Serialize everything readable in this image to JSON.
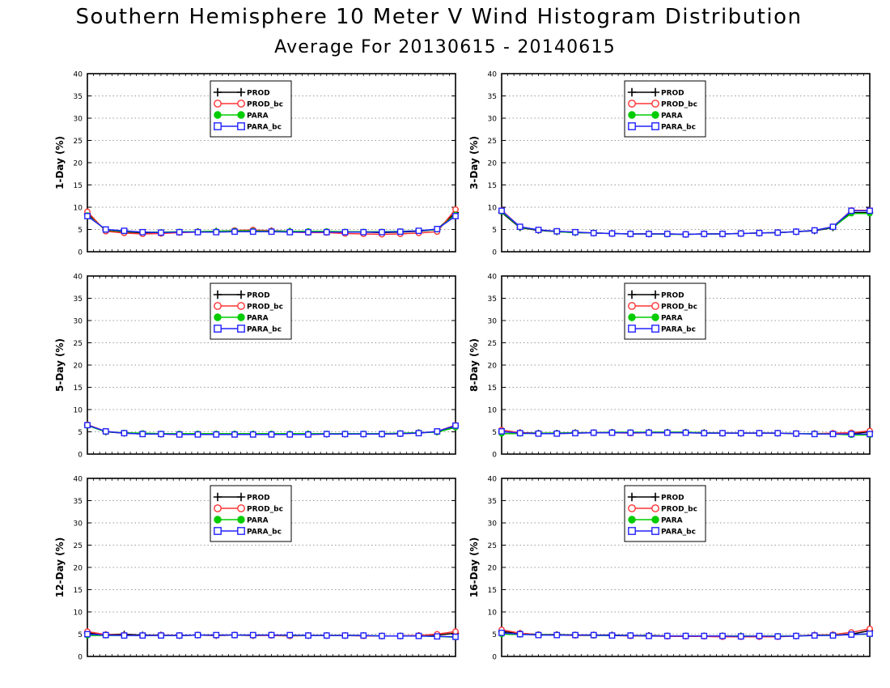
{
  "title": "Southern Hemisphere 10 Meter V Wind Histogram Distribution",
  "subtitle": "Average For 20130615 - 20140615",
  "series_styles": [
    {
      "name": "PROD",
      "color": "#000000",
      "marker": "plus"
    },
    {
      "name": "PROD_bc",
      "color": "#ff3333",
      "marker": "open-circle"
    },
    {
      "name": "PARA",
      "color": "#00cc00",
      "marker": "filled-circle"
    },
    {
      "name": "PARA_bc",
      "color": "#2222ff",
      "marker": "open-square"
    }
  ],
  "chart_data": [
    {
      "type": "line",
      "ylabel": "1-Day (%)",
      "ylim": [
        0,
        40
      ],
      "yticks": [
        0,
        5,
        10,
        15,
        20,
        25,
        30,
        35,
        40
      ],
      "x": [
        1,
        2,
        3,
        4,
        5,
        6,
        7,
        8,
        9,
        10,
        11,
        12,
        13,
        14,
        15,
        16,
        17,
        18,
        19,
        20,
        21
      ],
      "grid": "horizontal-dotted",
      "legend_placement": "top-center",
      "series": [
        {
          "name": "PROD",
          "values": [
            8.5,
            4.8,
            4.5,
            4.2,
            4.3,
            4.4,
            4.5,
            4.6,
            4.7,
            4.8,
            4.7,
            4.6,
            4.5,
            4.5,
            4.4,
            4.4,
            4.3,
            4.4,
            4.6,
            5.0,
            8.8
          ]
        },
        {
          "name": "PROD_bc",
          "values": [
            9.0,
            4.6,
            4.2,
            4.0,
            4.1,
            4.3,
            4.4,
            4.5,
            4.8,
            4.9,
            4.7,
            4.4,
            4.3,
            4.3,
            4.1,
            4.0,
            3.9,
            4.0,
            4.2,
            4.5,
            9.5
          ]
        },
        {
          "name": "PARA",
          "values": [
            8.2,
            4.9,
            4.6,
            4.4,
            4.4,
            4.5,
            4.5,
            4.6,
            4.7,
            4.7,
            4.6,
            4.6,
            4.6,
            4.6,
            4.5,
            4.5,
            4.5,
            4.6,
            4.7,
            5.0,
            8.3
          ]
        },
        {
          "name": "PARA_bc",
          "values": [
            8.0,
            5.0,
            4.7,
            4.4,
            4.3,
            4.4,
            4.4,
            4.4,
            4.5,
            4.5,
            4.5,
            4.4,
            4.4,
            4.4,
            4.4,
            4.4,
            4.4,
            4.5,
            4.7,
            5.1,
            8.0
          ]
        }
      ]
    },
    {
      "type": "line",
      "ylabel": "3-Day (%)",
      "ylim": [
        0,
        40
      ],
      "yticks": [
        0,
        5,
        10,
        15,
        20,
        25,
        30,
        35,
        40
      ],
      "x": [
        1,
        2,
        3,
        4,
        5,
        6,
        7,
        8,
        9,
        10,
        11,
        12,
        13,
        14,
        15,
        16,
        17,
        18,
        19,
        20,
        21
      ],
      "grid": "horizontal-dotted",
      "legend_placement": "top-center",
      "series": [
        {
          "name": "PROD",
          "values": [
            8.8,
            5.4,
            4.8,
            4.5,
            4.3,
            4.2,
            4.1,
            4.0,
            4.0,
            4.0,
            3.9,
            4.0,
            4.0,
            4.1,
            4.2,
            4.3,
            4.5,
            4.7,
            5.4,
            8.8,
            8.8
          ]
        },
        {
          "name": "PROD_bc",
          "values": [
            9.3,
            5.6,
            4.9,
            4.6,
            4.4,
            4.2,
            4.1,
            4.0,
            4.0,
            4.0,
            3.9,
            4.0,
            4.0,
            4.1,
            4.2,
            4.3,
            4.5,
            4.8,
            5.6,
            9.3,
            9.3
          ]
        },
        {
          "name": "PARA",
          "values": [
            9.0,
            5.5,
            4.9,
            4.5,
            4.3,
            4.2,
            4.1,
            4.0,
            4.0,
            3.9,
            3.9,
            4.0,
            4.0,
            4.1,
            4.2,
            4.3,
            4.5,
            4.8,
            5.5,
            8.6,
            8.6
          ]
        },
        {
          "name": "PARA_bc",
          "values": [
            9.2,
            5.6,
            4.9,
            4.6,
            4.4,
            4.2,
            4.1,
            4.0,
            4.0,
            4.0,
            3.9,
            4.0,
            4.0,
            4.1,
            4.2,
            4.3,
            4.5,
            4.8,
            5.6,
            9.2,
            9.2
          ]
        }
      ]
    },
    {
      "type": "line",
      "ylabel": "5-Day (%)",
      "ylim": [
        0,
        40
      ],
      "yticks": [
        0,
        5,
        10,
        15,
        20,
        25,
        30,
        35,
        40
      ],
      "x": [
        1,
        2,
        3,
        4,
        5,
        6,
        7,
        8,
        9,
        10,
        11,
        12,
        13,
        14,
        15,
        16,
        17,
        18,
        19,
        20,
        21
      ],
      "grid": "horizontal-dotted",
      "legend_placement": "top-center",
      "series": [
        {
          "name": "PROD",
          "values": [
            6.5,
            5.0,
            4.7,
            4.6,
            4.5,
            4.5,
            4.5,
            4.5,
            4.5,
            4.5,
            4.5,
            4.5,
            4.5,
            4.5,
            4.5,
            4.5,
            4.5,
            4.6,
            4.8,
            5.0,
            6.3
          ]
        },
        {
          "name": "PROD_bc",
          "values": [
            6.6,
            5.1,
            4.7,
            4.5,
            4.5,
            4.4,
            4.4,
            4.4,
            4.4,
            4.4,
            4.4,
            4.4,
            4.4,
            4.5,
            4.5,
            4.5,
            4.5,
            4.6,
            4.7,
            5.1,
            6.5
          ]
        },
        {
          "name": "PARA",
          "values": [
            6.4,
            5.0,
            4.8,
            4.7,
            4.6,
            4.6,
            4.6,
            4.6,
            4.6,
            4.6,
            4.6,
            4.6,
            4.6,
            4.6,
            4.6,
            4.6,
            4.6,
            4.7,
            4.8,
            4.9,
            6.0
          ]
        },
        {
          "name": "PARA_bc",
          "values": [
            6.5,
            5.1,
            4.7,
            4.5,
            4.5,
            4.4,
            4.4,
            4.4,
            4.4,
            4.4,
            4.4,
            4.4,
            4.4,
            4.5,
            4.5,
            4.5,
            4.5,
            4.6,
            4.7,
            5.1,
            6.4
          ]
        }
      ]
    },
    {
      "type": "line",
      "ylabel": "8-Day (%)",
      "ylim": [
        0,
        40
      ],
      "yticks": [
        0,
        5,
        10,
        15,
        20,
        25,
        30,
        35,
        40
      ],
      "x": [
        1,
        2,
        3,
        4,
        5,
        6,
        7,
        8,
        9,
        10,
        11,
        12,
        13,
        14,
        15,
        16,
        17,
        18,
        19,
        20,
        21
      ],
      "grid": "horizontal-dotted",
      "legend_placement": "top-center",
      "series": [
        {
          "name": "PROD",
          "values": [
            5.0,
            4.8,
            4.7,
            4.7,
            4.8,
            4.8,
            4.9,
            4.8,
            4.9,
            4.9,
            4.9,
            4.8,
            4.7,
            4.7,
            4.7,
            4.7,
            4.6,
            4.6,
            4.6,
            4.6,
            5.0
          ]
        },
        {
          "name": "PROD_bc",
          "values": [
            5.4,
            4.8,
            4.6,
            4.6,
            4.7,
            4.8,
            4.8,
            4.7,
            4.8,
            4.8,
            4.8,
            4.7,
            4.7,
            4.7,
            4.7,
            4.7,
            4.6,
            4.6,
            4.7,
            4.8,
            5.2
          ]
        },
        {
          "name": "PARA",
          "values": [
            4.6,
            4.6,
            4.7,
            4.7,
            4.8,
            4.8,
            4.9,
            4.9,
            4.9,
            4.9,
            4.9,
            4.8,
            4.7,
            4.7,
            4.7,
            4.7,
            4.6,
            4.6,
            4.5,
            4.3,
            4.3
          ]
        },
        {
          "name": "PARA_bc",
          "values": [
            5.1,
            4.7,
            4.6,
            4.6,
            4.7,
            4.8,
            4.8,
            4.8,
            4.8,
            4.8,
            4.8,
            4.7,
            4.7,
            4.7,
            4.7,
            4.7,
            4.6,
            4.5,
            4.5,
            4.5,
            4.5
          ]
        }
      ]
    },
    {
      "type": "line",
      "ylabel": "12-Day (%)",
      "ylim": [
        0,
        40
      ],
      "yticks": [
        0,
        5,
        10,
        15,
        20,
        25,
        30,
        35,
        40
      ],
      "x": [
        1,
        2,
        3,
        4,
        5,
        6,
        7,
        8,
        9,
        10,
        11,
        12,
        13,
        14,
        15,
        16,
        17,
        18,
        19,
        20,
        21
      ],
      "grid": "horizontal-dotted",
      "legend_placement": "top-center",
      "series": [
        {
          "name": "PROD",
          "values": [
            5.3,
            4.9,
            5.0,
            4.8,
            4.8,
            4.7,
            4.8,
            4.7,
            4.8,
            4.7,
            4.8,
            4.7,
            4.7,
            4.7,
            4.7,
            4.7,
            4.6,
            4.6,
            4.7,
            4.8,
            5.2
          ]
        },
        {
          "name": "PROD_bc",
          "values": [
            5.6,
            4.9,
            4.8,
            4.7,
            4.8,
            4.7,
            4.8,
            4.7,
            4.8,
            4.7,
            4.7,
            4.6,
            4.7,
            4.7,
            4.7,
            4.6,
            4.6,
            4.6,
            4.7,
            5.0,
            5.6
          ]
        },
        {
          "name": "PARA",
          "values": [
            4.7,
            4.7,
            4.7,
            4.7,
            4.7,
            4.7,
            4.8,
            4.8,
            4.8,
            4.8,
            4.8,
            4.7,
            4.7,
            4.7,
            4.7,
            4.7,
            4.6,
            4.6,
            4.6,
            4.5,
            4.3
          ]
        },
        {
          "name": "PARA_bc",
          "values": [
            5.0,
            4.8,
            4.7,
            4.7,
            4.7,
            4.7,
            4.8,
            4.8,
            4.8,
            4.8,
            4.8,
            4.8,
            4.7,
            4.7,
            4.7,
            4.7,
            4.6,
            4.6,
            4.6,
            4.5,
            4.4
          ]
        }
      ]
    },
    {
      "type": "line",
      "ylabel": "16-Day (%)",
      "ylim": [
        0,
        40
      ],
      "yticks": [
        0,
        5,
        10,
        15,
        20,
        25,
        30,
        35,
        40
      ],
      "x": [
        1,
        2,
        3,
        4,
        5,
        6,
        7,
        8,
        9,
        10,
        11,
        12,
        13,
        14,
        15,
        16,
        17,
        18,
        19,
        20,
        21
      ],
      "grid": "horizontal-dotted",
      "legend_placement": "top-center",
      "series": [
        {
          "name": "PROD",
          "values": [
            5.6,
            5.2,
            4.9,
            4.9,
            4.8,
            4.8,
            4.8,
            4.7,
            4.7,
            4.6,
            4.6,
            4.6,
            4.6,
            4.6,
            4.5,
            4.5,
            4.6,
            4.8,
            4.8,
            5.0,
            5.8
          ]
        },
        {
          "name": "PROD_bc",
          "values": [
            6.0,
            5.2,
            4.9,
            4.8,
            4.7,
            4.7,
            4.7,
            4.6,
            4.6,
            4.5,
            4.5,
            4.5,
            4.4,
            4.4,
            4.4,
            4.4,
            4.6,
            4.8,
            4.9,
            5.4,
            6.2
          ]
        },
        {
          "name": "PARA",
          "values": [
            5.0,
            4.9,
            4.9,
            4.8,
            4.8,
            4.7,
            4.7,
            4.7,
            4.6,
            4.6,
            4.6,
            4.6,
            4.6,
            4.6,
            4.6,
            4.6,
            4.6,
            4.7,
            4.8,
            4.9,
            5.0
          ]
        },
        {
          "name": "PARA_bc",
          "values": [
            5.3,
            5.0,
            4.8,
            4.8,
            4.8,
            4.8,
            4.7,
            4.7,
            4.6,
            4.6,
            4.6,
            4.6,
            4.6,
            4.5,
            4.6,
            4.5,
            4.6,
            4.7,
            4.7,
            4.9,
            5.1
          ]
        }
      ]
    }
  ]
}
